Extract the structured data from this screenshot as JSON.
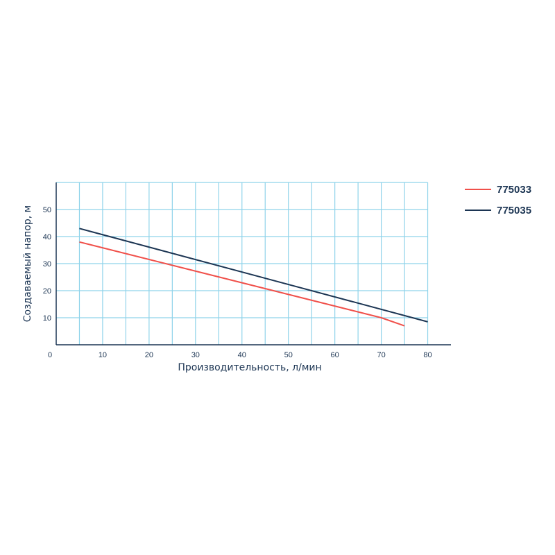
{
  "chart_data": {
    "type": "line",
    "xlabel": "Производительность, л/мин",
    "ylabel": "Создаваемый напор, м",
    "xlim": [
      0,
      85
    ],
    "ylim": [
      0,
      60
    ],
    "x_ticks": [
      0,
      10,
      20,
      30,
      40,
      50,
      60,
      70,
      80
    ],
    "x_tick_labels": [
      "0",
      "10",
      "20",
      "30",
      "40",
      "50",
      "60",
      "70",
      "80"
    ],
    "y_ticks": [
      10,
      20,
      30,
      40,
      50
    ],
    "y_tick_labels": [
      "10",
      "20",
      "30",
      "40",
      "50"
    ],
    "grid_x": [
      5,
      10,
      15,
      20,
      25,
      30,
      35,
      40,
      45,
      50,
      55,
      60,
      65,
      70,
      75,
      80
    ],
    "grid_y": [
      10,
      20,
      30,
      40,
      50,
      60
    ],
    "grid": true,
    "legend_position": "right",
    "series": [
      {
        "name": "775033",
        "color": "#f0504a",
        "x": [
          5,
          70,
          75
        ],
        "y": [
          38,
          10,
          7
        ]
      },
      {
        "name": "775035",
        "color": "#1c3553",
        "x": [
          5,
          80
        ],
        "y": [
          43,
          8.5
        ]
      }
    ],
    "colors": {
      "grid": "#8fd3ea",
      "axis": "#1c3553",
      "text": "#1c3553"
    }
  }
}
